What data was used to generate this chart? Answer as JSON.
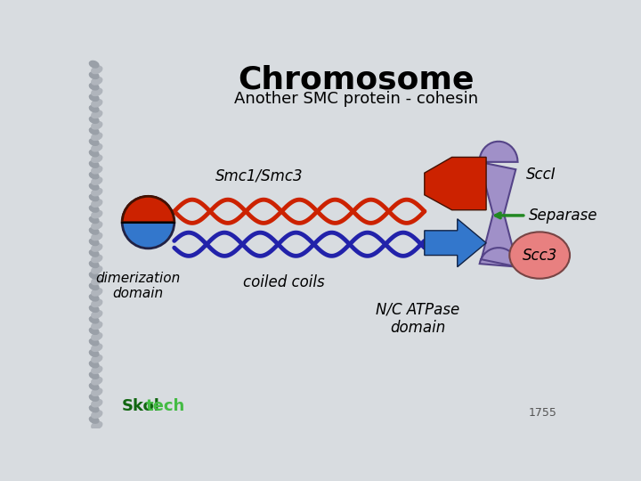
{
  "title": "Chromosome",
  "subtitle": "Another SMC protein - cohesin",
  "bg_color": "#d8dce0",
  "orange_color": "#cc2200",
  "blue_color": "#3377cc",
  "purple_color": "#a090c8",
  "dark_purple": "#2222aa",
  "green_arrow_color": "#228822",
  "pink_circle_color": "#e88080",
  "text_color": "#000000",
  "smc_label": "Smc1/Smc3",
  "sccl_label": "SccI",
  "separase_label": "Separase",
  "scc3_label": "Scc3",
  "dimerization_label": "dimerization\ndomain",
  "coiled_label": "coiled coils",
  "atpase_label": "N/C ATPase\ndomain"
}
